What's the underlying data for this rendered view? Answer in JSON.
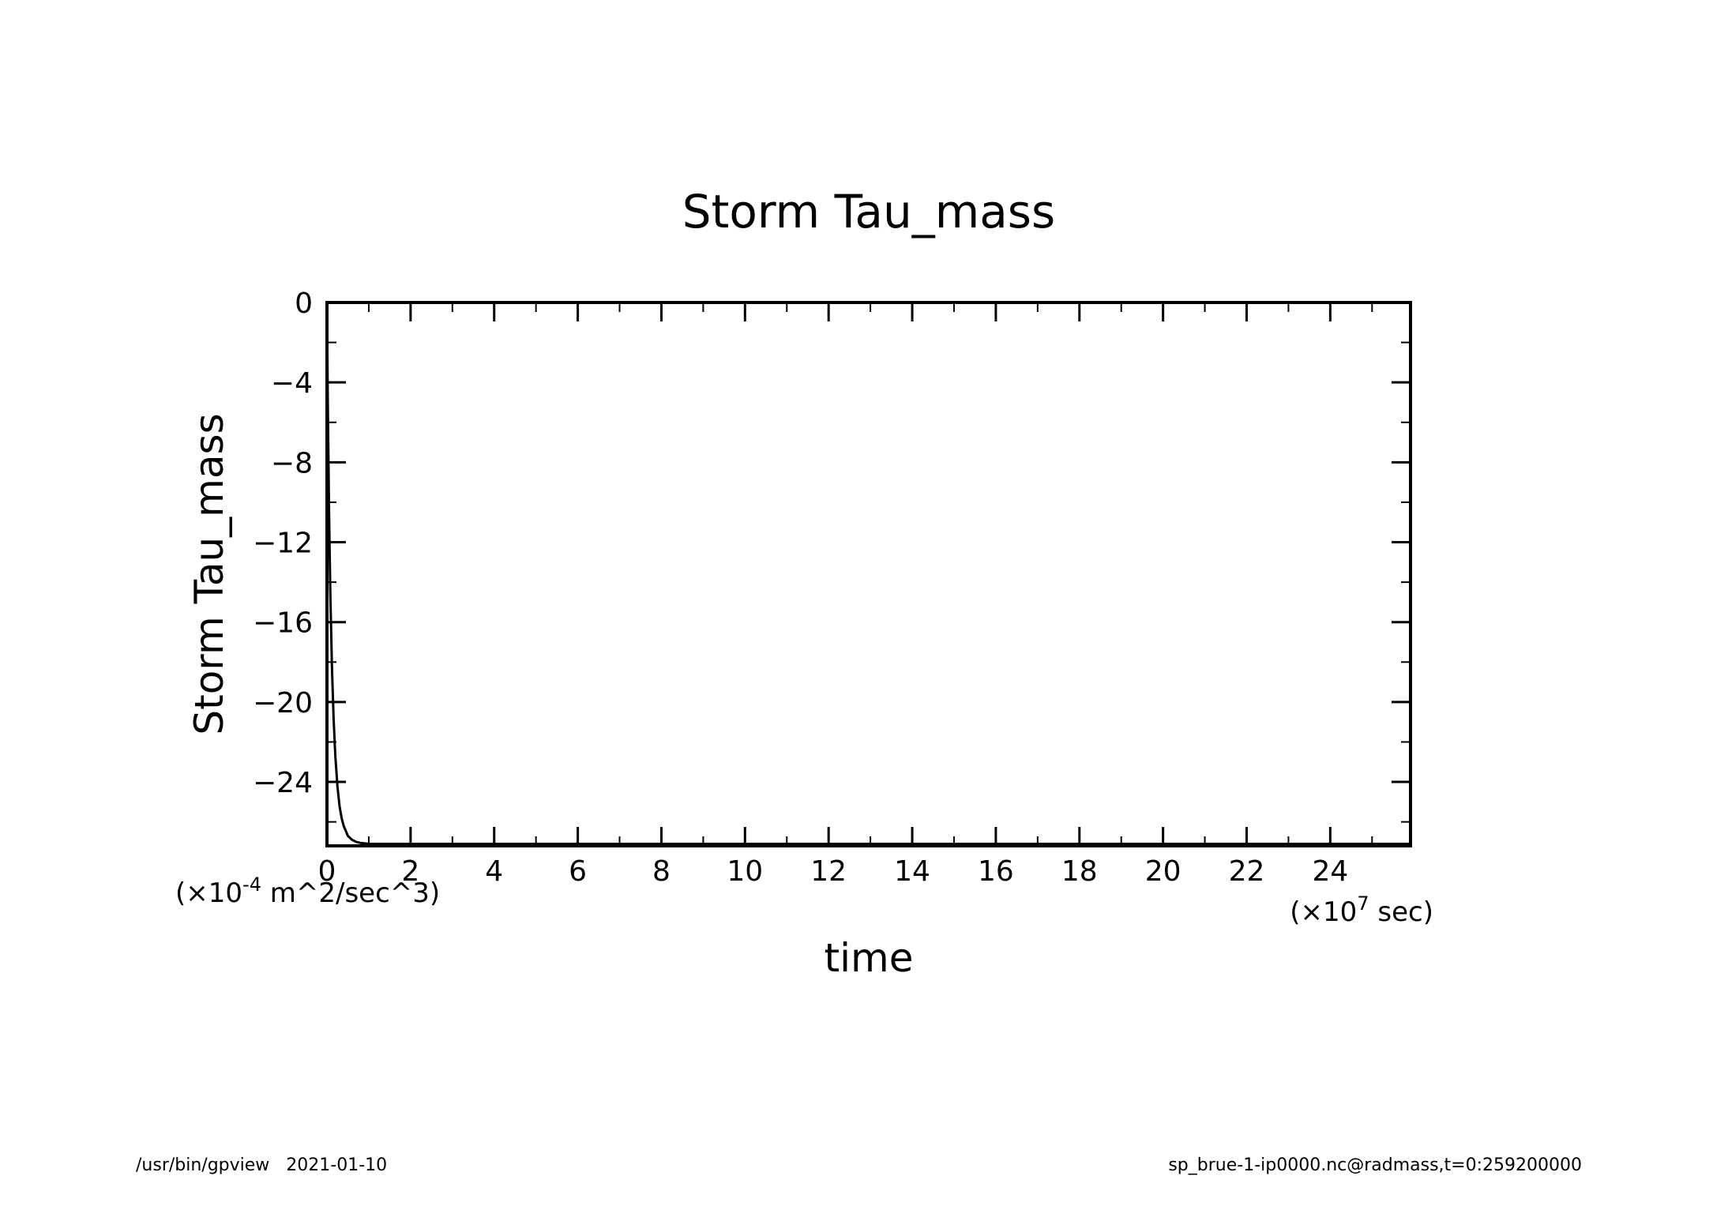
{
  "footer": {
    "left": "/usr/bin/gpview   2021-01-10",
    "right": "sp_brue-1-ip0000.nc@radmass,t=0:259200000"
  },
  "chart_data": {
    "type": "line",
    "title": "Storm Tau_mass",
    "xlabel": "time",
    "ylabel": "Storm Tau_mass",
    "x_units": "(×10",
    "x_units_exp": "7",
    "x_units_tail": " sec)",
    "y_units": "(×10",
    "y_units_exp": "-4",
    "y_units_tail": " m^2/sec^3)",
    "xlim": [
      0,
      25.92
    ],
    "ylim": [
      -27.2,
      0
    ],
    "x_ticks": [
      0,
      2,
      4,
      6,
      8,
      10,
      12,
      14,
      16,
      18,
      20,
      22,
      24
    ],
    "x_tick_labels": [
      "0",
      "2",
      "4",
      "6",
      "8",
      "10",
      "12",
      "14",
      "16",
      "18",
      "20",
      "22",
      "24"
    ],
    "y_ticks": [
      0,
      -4,
      -8,
      -12,
      -16,
      -20,
      -24
    ],
    "y_tick_labels": [
      "0",
      "−4",
      "−8",
      "−12",
      "−16",
      "−20",
      "−24"
    ],
    "grid": false,
    "series": [
      {
        "x": [
          0,
          0.02,
          0.05,
          0.08,
          0.12,
          0.16,
          0.2,
          0.25,
          0.3,
          0.35,
          0.4,
          0.5,
          0.6,
          0.7,
          0.8,
          1.0,
          1.5,
          2,
          4,
          8,
          12,
          16,
          20,
          24,
          25.92
        ],
        "values": [
          0,
          -5,
          -10.5,
          -14.5,
          -18.3,
          -20.9,
          -22.7,
          -24.2,
          -25.2,
          -25.8,
          -26.2,
          -26.7,
          -26.9,
          -27.0,
          -27.05,
          -27.1,
          -27.1,
          -27.1,
          -27.1,
          -27.1,
          -27.1,
          -27.1,
          -27.1,
          -27.1,
          -27.1
        ]
      }
    ]
  }
}
